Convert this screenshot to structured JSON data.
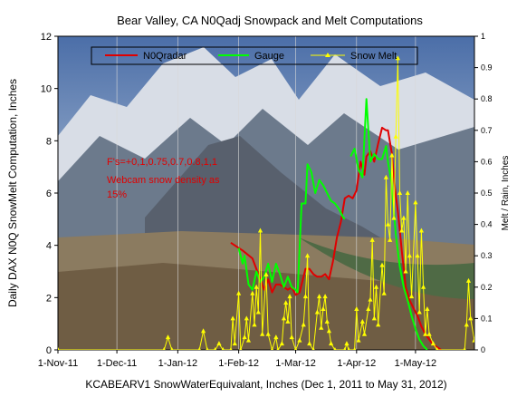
{
  "chart_data": {
    "type": "line",
    "title": "Bear Valley, CA N0Qadj Snowpack and Melt Computations",
    "xlabel": "KCABEARV1 SnowWaterEquivalant, Inches (Dec 1, 2011 to May 31, 2012)",
    "ylabel": "Daily DAX N0Q SnowMelt Computation, Inches",
    "y2label": "Melt / Rain, Inches",
    "annotation": [
      "F's=+0,1,0.75,0.7,0.8,1,1",
      "Webcam snow density as",
      "15%"
    ],
    "colors": {
      "n0qradar": "#e00000",
      "gauge": "#00ff00",
      "snowmelt": "#ffff00",
      "annotation": "#e00000",
      "plot_background": "#7a8fae"
    },
    "x_range": [
      "2011-11-01",
      "2012-05-31"
    ],
    "x_ticks": [
      "1-Nov-11",
      "1-Dec-11",
      "1-Jan-12",
      "1-Feb-12",
      "1-Mar-12",
      "1-Apr-12",
      "1-May-12"
    ],
    "ylim": [
      0,
      12
    ],
    "y_ticks": [
      "0",
      "2",
      "4",
      "6",
      "8",
      "10",
      "12"
    ],
    "y2lim": [
      0,
      1
    ],
    "y2_ticks": [
      "0",
      "0.1",
      "0.2",
      "0.3",
      "0.4",
      "0.5",
      "0.6",
      "0.7",
      "0.8",
      "0.9",
      "1"
    ],
    "legend_position": "top",
    "series": [
      {
        "name": "N0Qradar",
        "axis": "left",
        "points": [
          [
            "2012-01-28",
            4.1
          ],
          [
            "2012-02-03",
            3.8
          ],
          [
            "2012-02-08",
            3.5
          ],
          [
            "2012-02-11",
            2.9
          ],
          [
            "2012-02-14",
            2.3
          ],
          [
            "2012-02-16",
            2.7
          ],
          [
            "2012-02-18",
            2.2
          ],
          [
            "2012-02-20",
            2.5
          ],
          [
            "2012-02-22",
            2.5
          ],
          [
            "2012-02-24",
            2.4
          ],
          [
            "2012-02-26",
            2.3
          ],
          [
            "2012-02-28",
            2.4
          ],
          [
            "2012-03-01",
            2.1
          ],
          [
            "2012-03-03",
            2.2
          ],
          [
            "2012-03-06",
            3.1
          ],
          [
            "2012-03-08",
            3.1
          ],
          [
            "2012-03-10",
            2.9
          ],
          [
            "2012-03-12",
            2.8
          ],
          [
            "2012-03-14",
            2.8
          ],
          [
            "2012-03-16",
            2.9
          ],
          [
            "2012-03-18",
            2.7
          ],
          [
            "2012-03-20",
            3.4
          ],
          [
            "2012-03-22",
            4.3
          ],
          [
            "2012-03-24",
            4.9
          ],
          [
            "2012-03-26",
            5.8
          ],
          [
            "2012-03-28",
            5.9
          ],
          [
            "2012-03-30",
            5.8
          ],
          [
            "2012-04-01",
            6.1
          ],
          [
            "2012-04-03",
            7.2
          ],
          [
            "2012-04-05",
            6.7
          ],
          [
            "2012-04-06",
            7.4
          ],
          [
            "2012-04-08",
            7.6
          ],
          [
            "2012-04-10",
            7.2
          ],
          [
            "2012-04-12",
            7.9
          ],
          [
            "2012-04-14",
            8.5
          ],
          [
            "2012-04-16",
            8.4
          ],
          [
            "2012-04-17",
            8.4
          ],
          [
            "2012-04-19",
            7.5
          ],
          [
            "2012-04-20",
            6.6
          ],
          [
            "2012-04-21",
            5.9
          ],
          [
            "2012-04-22",
            5.3
          ],
          [
            "2012-04-23",
            4.6
          ],
          [
            "2012-04-24",
            3.8
          ],
          [
            "2012-04-25",
            3.1
          ],
          [
            "2012-04-26",
            2.4
          ],
          [
            "2012-04-28",
            1.9
          ],
          [
            "2012-04-30",
            1.6
          ],
          [
            "2012-05-02",
            1.3
          ],
          [
            "2012-05-04",
            0.9
          ],
          [
            "2012-05-06",
            0.6
          ],
          [
            "2012-05-08",
            0.4
          ],
          [
            "2012-05-10",
            0.2
          ],
          [
            "2012-05-12",
            0.1
          ],
          [
            "2012-05-14",
            0
          ]
        ]
      },
      {
        "name": "Gauge",
        "axis": "left",
        "points": [
          [
            "2012-02-01",
            3.9
          ],
          [
            "2012-02-03",
            3.3
          ],
          [
            "2012-02-04",
            3.6
          ],
          [
            "2012-02-06",
            2.5
          ],
          [
            "2012-02-08",
            2.3
          ],
          [
            "2012-02-10",
            3.0
          ],
          [
            "2012-02-12",
            2.6
          ],
          [
            "2012-02-14",
            2.8
          ],
          [
            "2012-02-16",
            3.3
          ],
          [
            "2012-02-18",
            2.6
          ],
          [
            "2012-02-20",
            3.3
          ],
          [
            "2012-02-22",
            2.9
          ],
          [
            "2012-02-24",
            2.4
          ],
          [
            "2012-02-26",
            2.8
          ],
          [
            "2012-02-28",
            2.4
          ],
          [
            "2012-03-01",
            2.3
          ],
          [
            "2012-03-02",
            2.2
          ],
          [
            "2012-03-04",
            5.6
          ],
          [
            "2012-03-06",
            5.6
          ],
          [
            "2012-03-07",
            7.1
          ],
          [
            "2012-03-09",
            6.8
          ],
          [
            "2012-03-11",
            6.0
          ],
          [
            "2012-03-13",
            6.5
          ],
          [
            "2012-03-15",
            6.3
          ],
          [
            "2012-03-17",
            6.0
          ],
          [
            "2012-03-19",
            5.7
          ],
          [
            "2012-03-21",
            5.6
          ],
          [
            "2012-03-23",
            5.4
          ],
          [
            "2012-03-25",
            5.1
          ],
          [
            "2012-03-26",
            5.0
          ],
          null,
          [
            "2012-03-29",
            7.4
          ],
          [
            "2012-03-31",
            7.7
          ],
          [
            "2012-04-02",
            6.9
          ],
          [
            "2012-04-04",
            6.6
          ],
          [
            "2012-04-06",
            9.6
          ],
          [
            "2012-04-08",
            7.2
          ],
          [
            "2012-04-10",
            7.5
          ],
          [
            "2012-04-12",
            7.3
          ],
          [
            "2012-04-14",
            7.3
          ],
          [
            "2012-04-16",
            7.8
          ],
          [
            "2012-04-17",
            7.2
          ],
          [
            "2012-04-19",
            6.3
          ],
          [
            "2012-04-20",
            5.3
          ],
          [
            "2012-04-21",
            4.4
          ],
          [
            "2012-04-23",
            3.2
          ],
          [
            "2012-04-25",
            2.4
          ],
          [
            "2012-04-27",
            1.9
          ],
          [
            "2012-04-29",
            1.3
          ],
          [
            "2012-05-01",
            0.8
          ],
          [
            "2012-05-03",
            0.4
          ],
          [
            "2012-05-05",
            0.15
          ],
          [
            "2012-05-07",
            0
          ]
        ]
      },
      {
        "name": "Snow Melt",
        "axis": "right",
        "points": [
          [
            "2011-11-01",
            0
          ],
          [
            "2011-12-25",
            0
          ],
          [
            "2011-12-27",
            0.04
          ],
          [
            "2011-12-29",
            0
          ],
          [
            "2012-01-12",
            0
          ],
          [
            "2012-01-14",
            0.06
          ],
          [
            "2012-01-16",
            0
          ],
          [
            "2012-01-20",
            0
          ],
          [
            "2012-01-22",
            0.02
          ],
          [
            "2012-01-24",
            0
          ],
          [
            "2012-01-28",
            0
          ],
          [
            "2012-01-29",
            0.1
          ],
          [
            "2012-01-30",
            0.02
          ],
          [
            "2012-02-01",
            0.18
          ],
          [
            "2012-02-02",
            0
          ],
          [
            "2012-02-04",
            0.04
          ],
          [
            "2012-02-05",
            0.1
          ],
          [
            "2012-02-06",
            0.03
          ],
          [
            "2012-02-08",
            0.18
          ],
          [
            "2012-02-09",
            0.08
          ],
          [
            "2012-02-10",
            0.2
          ],
          [
            "2012-02-11",
            0.12
          ],
          [
            "2012-02-12",
            0.38
          ],
          [
            "2012-02-13",
            0.05
          ],
          [
            "2012-02-15",
            0.24
          ],
          [
            "2012-02-16",
            0.05
          ],
          [
            "2012-02-18",
            0
          ],
          [
            "2012-02-20",
            0.04
          ],
          [
            "2012-02-21",
            0
          ],
          [
            "2012-02-23",
            0.02
          ],
          [
            "2012-02-24",
            0.1
          ],
          [
            "2012-02-25",
            0.15
          ],
          [
            "2012-02-26",
            0.09
          ],
          [
            "2012-02-27",
            0.17
          ],
          [
            "2012-02-28",
            0.04
          ],
          [
            "2012-03-01",
            0
          ],
          [
            "2012-03-03",
            0.03
          ],
          [
            "2012-03-05",
            0.08
          ],
          [
            "2012-03-06",
            0.17
          ],
          [
            "2012-03-07",
            0.3
          ],
          [
            "2012-03-08",
            0.02
          ],
          [
            "2012-03-10",
            0
          ],
          [
            "2012-03-12",
            0.12
          ],
          [
            "2012-03-13",
            0.17
          ],
          [
            "2012-03-14",
            0.07
          ],
          [
            "2012-03-15",
            0.13
          ],
          [
            "2012-03-16",
            0.17
          ],
          [
            "2012-03-17",
            0.09
          ],
          [
            "2012-03-18",
            0.06
          ],
          [
            "2012-03-19",
            0.02
          ],
          [
            "2012-03-21",
            0
          ],
          [
            "2012-03-26",
            0
          ],
          [
            "2012-03-27",
            0.02
          ],
          [
            "2012-03-28",
            0
          ],
          [
            "2012-03-31",
            0
          ],
          [
            "2012-04-01",
            0.13
          ],
          [
            "2012-04-02",
            0.03
          ],
          [
            "2012-04-04",
            0.09
          ],
          [
            "2012-04-05",
            0.05
          ],
          [
            "2012-04-07",
            0.13
          ],
          [
            "2012-04-08",
            0.16
          ],
          [
            "2012-04-09",
            0.35
          ],
          [
            "2012-04-10",
            0.1
          ],
          [
            "2012-04-11",
            0.2
          ],
          [
            "2012-04-12",
            0.08
          ],
          [
            "2012-04-14",
            0.27
          ],
          [
            "2012-04-15",
            0.18
          ],
          [
            "2012-04-16",
            0.55
          ],
          [
            "2012-04-17",
            0.4
          ],
          [
            "2012-04-18",
            0.35
          ],
          [
            "2012-04-19",
            0.62
          ],
          [
            "2012-04-20",
            0.42
          ],
          [
            "2012-04-21",
            0.68
          ],
          [
            "2012-04-22",
            0.93
          ],
          [
            "2012-04-23",
            0.5
          ],
          [
            "2012-04-24",
            0.38
          ],
          [
            "2012-04-25",
            0.42
          ],
          [
            "2012-04-26",
            0.25
          ],
          [
            "2012-04-27",
            0.5
          ],
          [
            "2012-04-28",
            0.3
          ],
          [
            "2012-04-29",
            0.17
          ],
          [
            "2012-05-01",
            0.47
          ],
          [
            "2012-05-02",
            0.3
          ],
          [
            "2012-05-03",
            0.12
          ],
          [
            "2012-05-04",
            0.38
          ],
          [
            "2012-05-05",
            0.2
          ],
          [
            "2012-05-06",
            0.05
          ],
          [
            "2012-05-07",
            0.13
          ],
          [
            "2012-05-08",
            0.05
          ],
          [
            "2012-05-10",
            0.02
          ],
          [
            "2012-05-12",
            0
          ],
          [
            "2012-05-26",
            0
          ],
          [
            "2012-05-27",
            0.08
          ],
          [
            "2012-05-28",
            0.22
          ],
          [
            "2012-05-29",
            0.1
          ],
          [
            "2012-05-31",
            0.03
          ]
        ]
      }
    ]
  }
}
